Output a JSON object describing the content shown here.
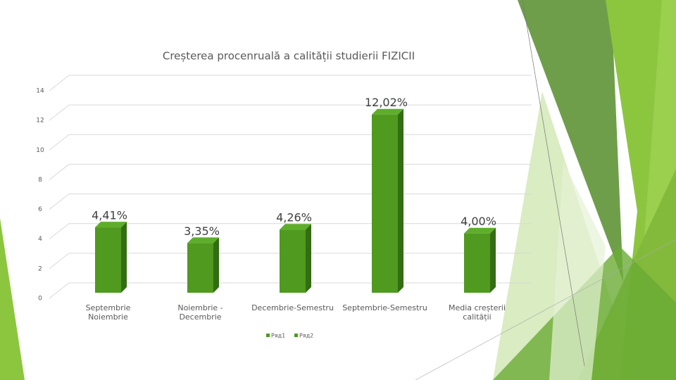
{
  "chart_data": {
    "type": "bar3d",
    "title": "Creșterea procenruală a calității studierii FIZICII",
    "categories": [
      [
        "Septembrie",
        "Noiembrie"
      ],
      [
        "Noiembrie -",
        "Decembrie"
      ],
      [
        "Decembrie-Semestru"
      ],
      [
        "Septembrie-Semestru"
      ],
      [
        "Media creșterii",
        "calității"
      ]
    ],
    "series": [
      {
        "name": "Ряд1",
        "color": "#4f9a1f",
        "values": [
          4.41,
          3.35,
          4.26,
          12.02,
          4.0
        ],
        "value_labels": [
          "4,41%",
          "3,35%",
          "4,26%",
          "12,02%",
          "4,00%"
        ]
      },
      {
        "name": "Ряд2",
        "color": "#4f9a1f",
        "values": [
          null,
          null,
          null,
          null,
          null
        ]
      }
    ],
    "ylim": [
      0,
      14
    ],
    "yticks": [
      0,
      2,
      4,
      6,
      8,
      10,
      12,
      14
    ],
    "grid": true,
    "legend": "bottom"
  }
}
